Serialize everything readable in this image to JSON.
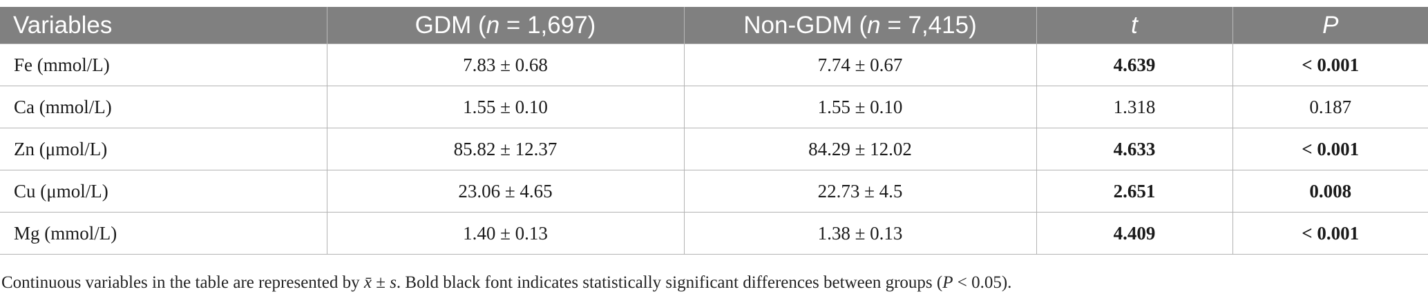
{
  "table": {
    "headers": [
      {
        "text": "Variables",
        "prefix": "",
        "italic": "",
        "suffix": ""
      },
      {
        "text": "",
        "prefix": "GDM (",
        "italic": "n",
        "suffix": " = 1,697)"
      },
      {
        "text": "",
        "prefix": "Non-GDM (",
        "italic": "n",
        "suffix": " = 7,415)"
      },
      {
        "text": "",
        "prefix": "",
        "italic": "t",
        "suffix": ""
      },
      {
        "text": "",
        "prefix": "",
        "italic": "P",
        "suffix": ""
      }
    ],
    "rows": [
      {
        "variable": "Fe (mmol/L)",
        "gdm": "7.83 ± 0.68",
        "non_gdm": "7.74 ± 0.67",
        "t": "4.639",
        "p": "< 0.001",
        "t_bold": true,
        "p_bold": true
      },
      {
        "variable": "Ca (mmol/L)",
        "gdm": "1.55 ± 0.10",
        "non_gdm": "1.55 ± 0.10",
        "t": "1.318",
        "p": "0.187",
        "t_bold": false,
        "p_bold": false
      },
      {
        "variable": "Zn (μmol/L)",
        "gdm": "85.82 ± 12.37",
        "non_gdm": "84.29 ± 12.02",
        "t": "4.633",
        "p": "< 0.001",
        "t_bold": true,
        "p_bold": true
      },
      {
        "variable": "Cu (μmol/L)",
        "gdm": "23.06 ± 4.65",
        "non_gdm": "22.73 ± 4.5",
        "t": "2.651",
        "p": "0.008",
        "t_bold": true,
        "p_bold": true
      },
      {
        "variable": "Mg (mmol/L)",
        "gdm": "1.40 ± 0.13",
        "non_gdm": "1.38 ± 0.13",
        "t": "4.409",
        "p": "< 0.001",
        "t_bold": true,
        "p_bold": true
      }
    ]
  },
  "footnote": {
    "part1": "Continuous variables in the table are represented by ",
    "xbar": "x̄",
    "part2": " ± ",
    "s": "s",
    "part3": ". Bold black font indicates statistically significant differences between groups (",
    "p": "P",
    "part4": " < 0.05)."
  },
  "colors": {
    "header_bg": "#808080",
    "header_text": "#ffffff",
    "grid": "#b3b3b3"
  }
}
